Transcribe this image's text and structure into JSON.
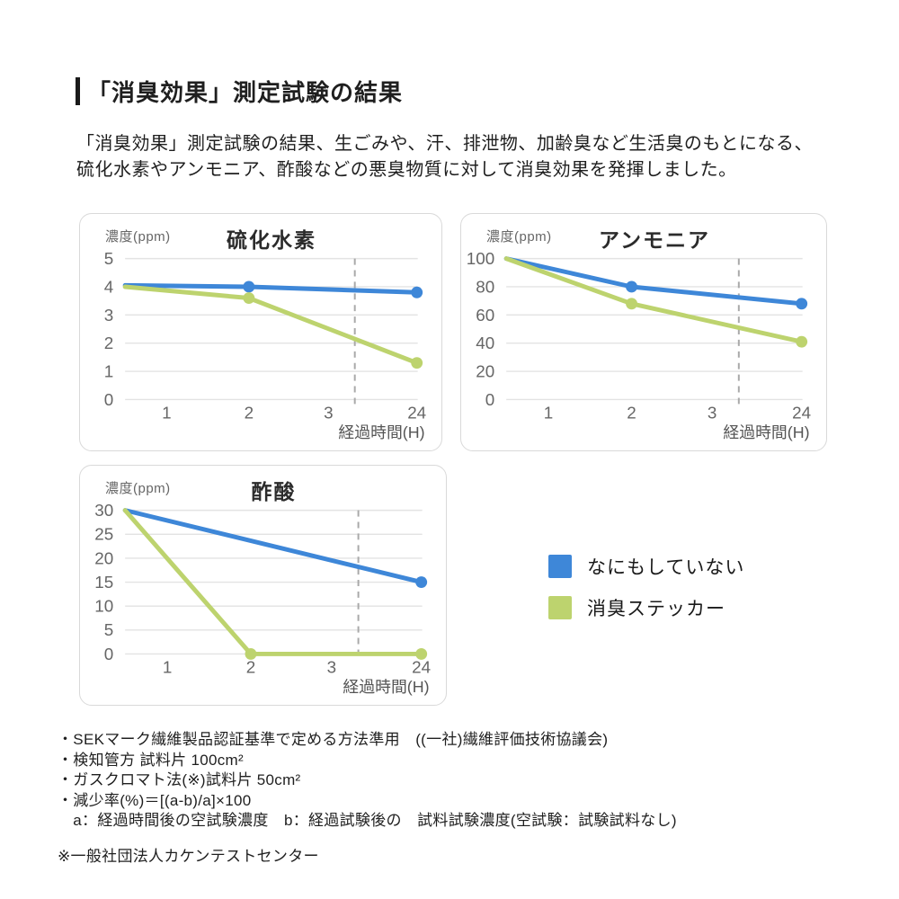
{
  "page": {
    "title": "「消臭効果」測定試験の結果",
    "intro_line1": "「消臭効果」測定試験の結果、生ごみや、汗、排泄物、加齢臭など生活臭のもとになる、",
    "intro_line2": "硫化水素やアンモニア、酢酸などの悪臭物質に対して消臭効果を発揮しました。"
  },
  "colors": {
    "blue": "#3e87d8",
    "green": "#bdd36e",
    "grid": "#e3e3e3",
    "divider": "#a9a9a9",
    "tick_text": "#666666",
    "axis_label_text": "#555555"
  },
  "legend": [
    {
      "label": "なにもしていない",
      "color": "#3e87d8"
    },
    {
      "label": "消臭ステッカー",
      "color": "#bdd36e"
    }
  ],
  "chart_data": [
    {
      "type": "line",
      "title": "硫化水素",
      "y_axis_label": "濃度(ppm)",
      "x_axis_label": "経過時間(H)",
      "x_tick_labels": [
        "1",
        "2",
        "3",
        "24"
      ],
      "x_tick_pos": [
        0.142,
        0.423,
        0.695,
        0.997
      ],
      "x_positions": {
        "0": 0,
        "1": 0.142,
        "2": 0.423,
        "3": 0.695,
        "24": 0.997
      },
      "divider_pos": 0.785,
      "y_ticks": [
        0,
        1,
        2,
        3,
        4,
        5
      ],
      "y_max": 5,
      "grid": true,
      "series": [
        {
          "name": "なにもしていない",
          "color_key": "blue",
          "points": [
            {
              "t": 0,
              "v": 4.05
            },
            {
              "t": 2,
              "v": 4.0
            },
            {
              "t": 24,
              "v": 3.8
            }
          ]
        },
        {
          "name": "消臭ステッカー",
          "color_key": "green",
          "points": [
            {
              "t": 0,
              "v": 4.0
            },
            {
              "t": 2,
              "v": 3.6
            },
            {
              "t": 24,
              "v": 1.3
            }
          ]
        }
      ]
    },
    {
      "type": "line",
      "title": "アンモニア",
      "y_axis_label": "濃度(ppm)",
      "x_axis_label": "経過時間(H)",
      "x_tick_labels": [
        "1",
        "2",
        "3",
        "24"
      ],
      "x_tick_pos": [
        0.142,
        0.423,
        0.695,
        0.997
      ],
      "x_positions": {
        "0": 0,
        "1": 0.142,
        "2": 0.423,
        "3": 0.695,
        "24": 0.997
      },
      "divider_pos": 0.785,
      "y_ticks": [
        0,
        20,
        40,
        60,
        80,
        100
      ],
      "y_max": 100,
      "grid": true,
      "series": [
        {
          "name": "なにもしていない",
          "color_key": "blue",
          "points": [
            {
              "t": 0,
              "v": 100
            },
            {
              "t": 2,
              "v": 80
            },
            {
              "t": 24,
              "v": 68
            }
          ]
        },
        {
          "name": "消臭ステッカー",
          "color_key": "green",
          "points": [
            {
              "t": 0,
              "v": 100
            },
            {
              "t": 2,
              "v": 68
            },
            {
              "t": 24,
              "v": 41
            }
          ]
        }
      ]
    },
    {
      "type": "line",
      "title": "酢酸",
      "y_axis_label": "濃度(ppm)",
      "x_axis_label": "経過時間(H)",
      "x_tick_labels": [
        "1",
        "2",
        "3",
        "24"
      ],
      "x_tick_pos": [
        0.142,
        0.423,
        0.695,
        0.997
      ],
      "x_positions": {
        "0": 0,
        "1": 0.142,
        "2": 0.423,
        "3": 0.695,
        "24": 0.997
      },
      "divider_pos": 0.785,
      "y_ticks": [
        0,
        5,
        10,
        15,
        20,
        25,
        30
      ],
      "y_max": 30,
      "grid": true,
      "series": [
        {
          "name": "なにもしていない",
          "color_key": "blue",
          "points": [
            {
              "t": 0,
              "v": 30
            },
            {
              "t": 24,
              "v": 15
            }
          ]
        },
        {
          "name": "消臭ステッカー",
          "color_key": "green",
          "points": [
            {
              "t": 0,
              "v": 30
            },
            {
              "t": 2,
              "v": 0
            },
            {
              "t": 24,
              "v": 0
            }
          ]
        }
      ]
    }
  ],
  "footnotes": [
    "・SEKマーク繊維製品認証基準で定める方法準用　((一社)繊維評価技術協議会)",
    "・検知管方 試料片 100cm²",
    "・ガスクロマト法(※)試料片 50cm²",
    "・減少率(%)＝[(a-b)/a]×100",
    "　a：経過時間後の空試験濃度　b：経過試験後の　試料試験濃度(空試験：試験試料なし)"
  ],
  "footer_note": "※一般社団法人カケンテストセンター"
}
